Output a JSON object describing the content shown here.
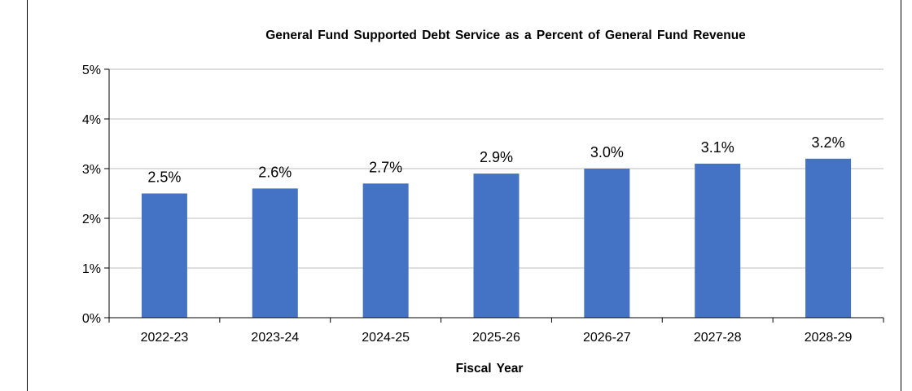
{
  "chart_data": {
    "type": "bar",
    "title": "General Fund Supported Debt Service as a Percent of General Fund Revenue",
    "xlabel": "Fiscal Year",
    "ylabel": "",
    "categories": [
      "2022-23",
      "2023-24",
      "2024-25",
      "2025-26",
      "2026-27",
      "2027-28",
      "2028-29"
    ],
    "values": [
      2.5,
      2.6,
      2.7,
      2.9,
      3.0,
      3.1,
      3.2
    ],
    "data_labels": [
      "2.5%",
      "2.6%",
      "2.7%",
      "2.9%",
      "3.0%",
      "3.1%",
      "3.2%"
    ],
    "ylim": [
      0,
      5
    ],
    "yticks": [
      0,
      1,
      2,
      3,
      4,
      5
    ],
    "ytick_labels": [
      "0%",
      "1%",
      "2%",
      "3%",
      "4%",
      "5%"
    ],
    "grid": true,
    "legend": "none",
    "colors": {
      "bar": "#4472C4",
      "grid": "#BFBFBF",
      "axis": "#000000"
    }
  }
}
